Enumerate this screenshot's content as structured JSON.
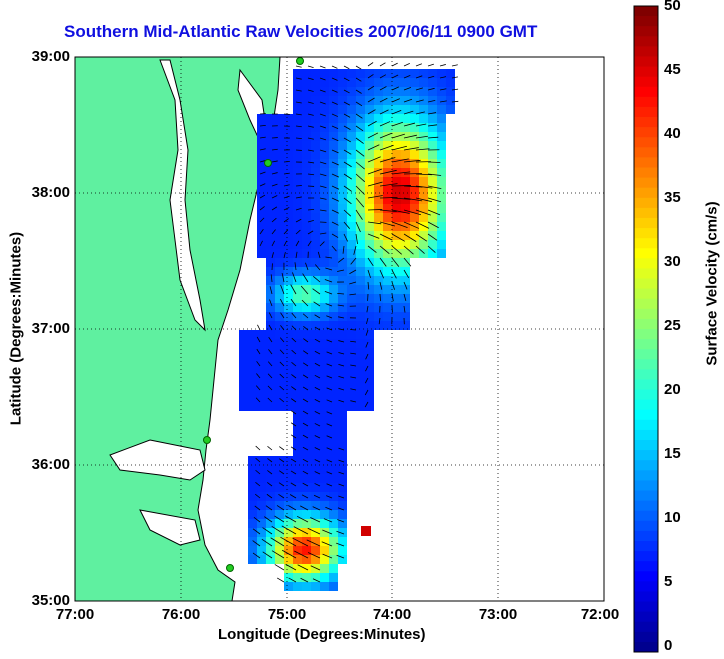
{
  "title": "Southern Mid-Atlantic Raw Velocities 2007/06/11 0900 GMT",
  "x_axis": {
    "label": "Longitude (Degrees:Minutes)",
    "ticks": [
      "77:00",
      "76:00",
      "75:00",
      "74:00",
      "73:00",
      "72:00"
    ]
  },
  "y_axis": {
    "label": "Latitude (Degrees:Minutes)",
    "ticks": [
      "39:00",
      "38:00",
      "37:00",
      "36:00",
      "35:00"
    ]
  },
  "colorbar": {
    "label": "Surface Velocity (cm/s)",
    "ticks": [
      "50",
      "45",
      "40",
      "35",
      "30",
      "25",
      "20",
      "15",
      "10",
      "5",
      "0"
    ],
    "min": 0,
    "max": 50
  },
  "colors": {
    "land": "#5ff0a0",
    "background": "#ffffff",
    "title": "#1010e0",
    "site_marker": "#22cc22"
  },
  "grid": "dotted",
  "extent": {
    "lon": [
      -77,
      -72
    ],
    "lat": [
      35,
      39
    ]
  }
}
